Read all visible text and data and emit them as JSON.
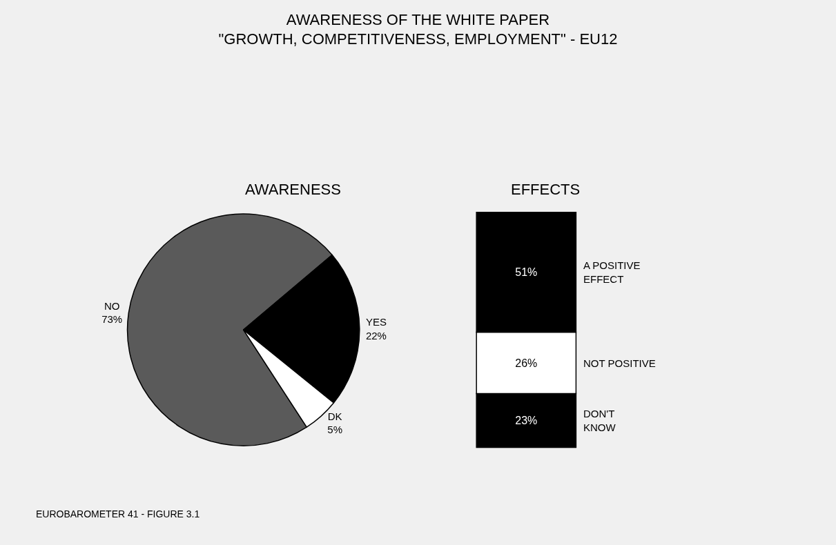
{
  "chart_data": [
    {
      "type": "pie",
      "title": "AWARENESS OF THE WHITE PAPER\n\"GROWTH, COMPETITIVENESS, EMPLOYMENT\" - EU12",
      "subtitle": "AWARENESS",
      "categories": [
        "NO",
        "YES",
        "DK"
      ],
      "values": [
        73,
        22,
        5
      ],
      "colors": [
        "#5a5a5a",
        "#000000",
        "#ffffff"
      ],
      "value_labels": [
        "73%",
        "22%",
        "5%"
      ],
      "annotations": [
        "EUROBAROMETER 41 - FIGURE 3.1"
      ]
    },
    {
      "type": "bar",
      "title": "EFFECTS",
      "stacked": true,
      "categories": [
        null
      ],
      "series": [
        {
          "name": "DON'T\nKNOW",
          "color": "#000000",
          "values": [
            23
          ],
          "value_labels": [
            "23%"
          ]
        },
        {
          "name": "NOT POSITIVE",
          "color": "#ffffff",
          "values": [
            26
          ],
          "value_labels": [
            "26%"
          ]
        },
        {
          "name": "A POSITIVE\nEFFECT",
          "color": "#000000",
          "values": [
            51
          ],
          "value_labels": [
            "51%"
          ]
        }
      ]
    }
  ]
}
